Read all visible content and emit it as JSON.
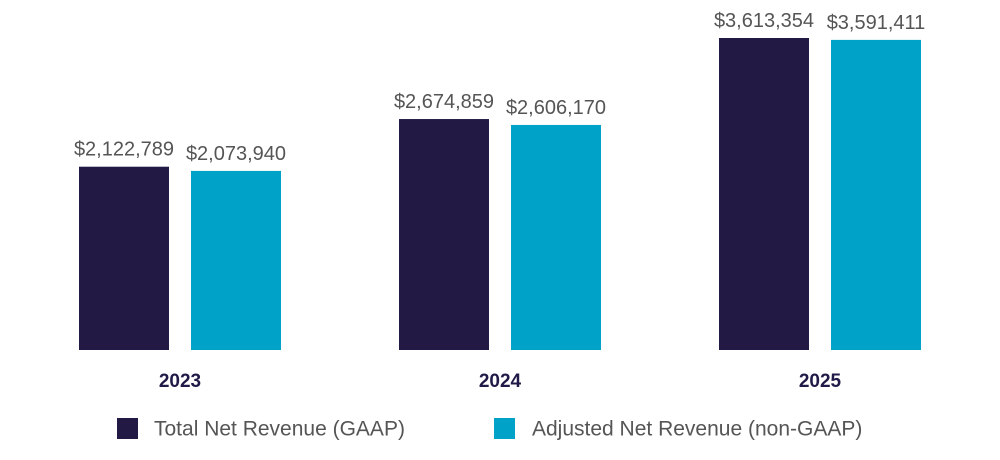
{
  "chart_data": {
    "type": "bar",
    "title": "",
    "xlabel": "",
    "ylabel": "",
    "categories": [
      "2023",
      "2024",
      "2025"
    ],
    "series": [
      {
        "name": "Total Net Revenue (GAAP)",
        "color": "#221a45",
        "values": [
          2122789,
          2674859,
          3613354
        ],
        "labels": [
          "$2,122,789",
          "$2,674,859",
          "$3,613,354"
        ]
      },
      {
        "name": "Adjusted Net Revenue (non-GAAP)",
        "color": "#01a2c7",
        "values": [
          2073940,
          2606170,
          3591411
        ],
        "labels": [
          "$2,073,940",
          "$2,606,170",
          "$3,591,411"
        ]
      }
    ],
    "ylim": [
      0,
      3613354
    ],
    "grid": false,
    "legend_position": "bottom"
  }
}
